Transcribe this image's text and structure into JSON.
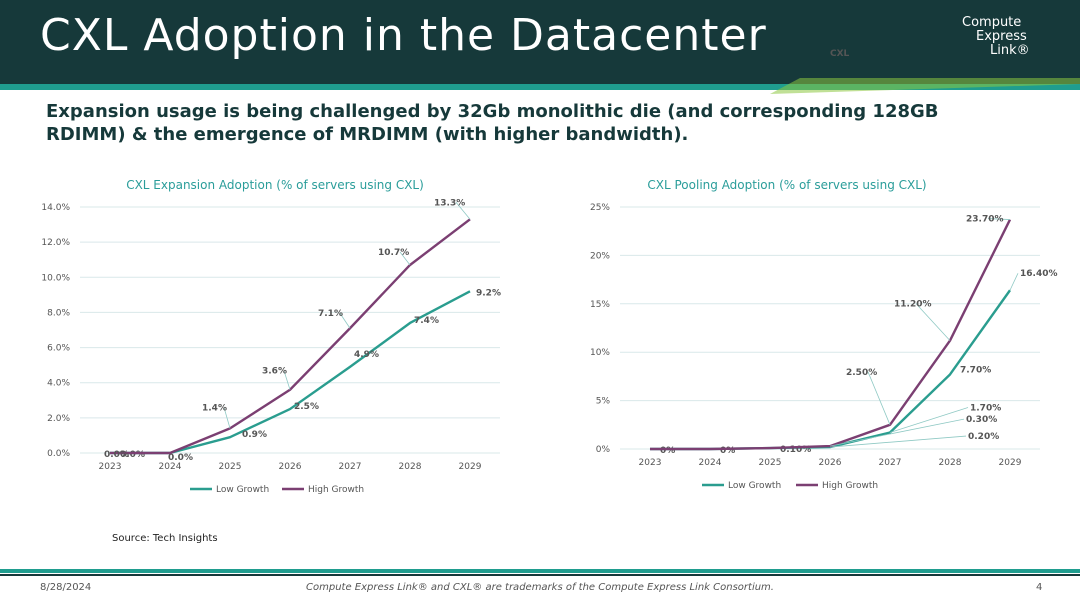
{
  "header": {
    "title": "CXL Adoption in the Datacenter",
    "logo_mark": "CXL",
    "logo_line1": "Compute",
    "logo_line2": "Express",
    "logo_line3": "Link®"
  },
  "subtitle": "Expansion usage is being challenged by 32Gb monolithic die (and corresponding 128GB RDIMM) & the emergence of MRDIMM (with higher bandwidth).",
  "colors": {
    "low": "#2a9d8f",
    "high": "#7b3f72",
    "accent": "#1f9d8f",
    "dark": "#16393a"
  },
  "chart_data": [
    {
      "type": "line",
      "title": "CXL Expansion Adoption (% of servers using CXL)",
      "x": [
        "2023",
        "2024",
        "2025",
        "2026",
        "2027",
        "2028",
        "2029"
      ],
      "ylim": [
        0,
        14
      ],
      "yticks": [
        "0.0%",
        "2.0%",
        "4.0%",
        "6.0%",
        "8.0%",
        "10.0%",
        "12.0%",
        "14.0%"
      ],
      "grid": true,
      "legend": "bottom",
      "series": [
        {
          "name": "Low Growth",
          "values": [
            0,
            0,
            0.9,
            2.5,
            4.9,
            7.4,
            9.2
          ],
          "labels": [
            "0.0%",
            "0.0%",
            "0.9%",
            "2.5%",
            "4.9%",
            "7.4%",
            "9.2%"
          ]
        },
        {
          "name": "High Growth",
          "values": [
            0,
            0,
            1.4,
            3.6,
            7.1,
            10.7,
            13.3
          ],
          "labels": [
            "0.0%",
            "",
            "1.4%",
            "3.6%",
            "7.1%",
            "10.7%",
            "13.3%"
          ]
        }
      ]
    },
    {
      "type": "line",
      "title": "CXL Pooling Adoption (% of servers using CXL)",
      "x": [
        "2023",
        "2024",
        "2025",
        "2026",
        "2027",
        "2028",
        "2029"
      ],
      "ylim": [
        0,
        25
      ],
      "yticks": [
        "0%",
        "5%",
        "10%",
        "15%",
        "20%",
        "25%"
      ],
      "grid": true,
      "legend": "bottom",
      "series": [
        {
          "name": "Low Growth",
          "values": [
            0,
            0,
            0.1,
            0.2,
            1.7,
            7.7,
            16.4
          ],
          "labels": [
            "0%",
            "0%",
            "0.10%",
            "0.20%",
            "1.70%",
            "7.70%",
            "16.40%"
          ]
        },
        {
          "name": "High Growth",
          "values": [
            0,
            0,
            0.1,
            0.3,
            2.5,
            11.2,
            23.7
          ],
          "labels": [
            "",
            "",
            "",
            "0.30%",
            "2.50%",
            "11.20%",
            "23.70%"
          ]
        }
      ]
    }
  ],
  "source": "Source: Tech Insights",
  "footer": {
    "date": "8/28/2024",
    "note": "Compute Express Link® and CXL® are trademarks of the Compute Express Link Consortium.",
    "page": "4"
  }
}
